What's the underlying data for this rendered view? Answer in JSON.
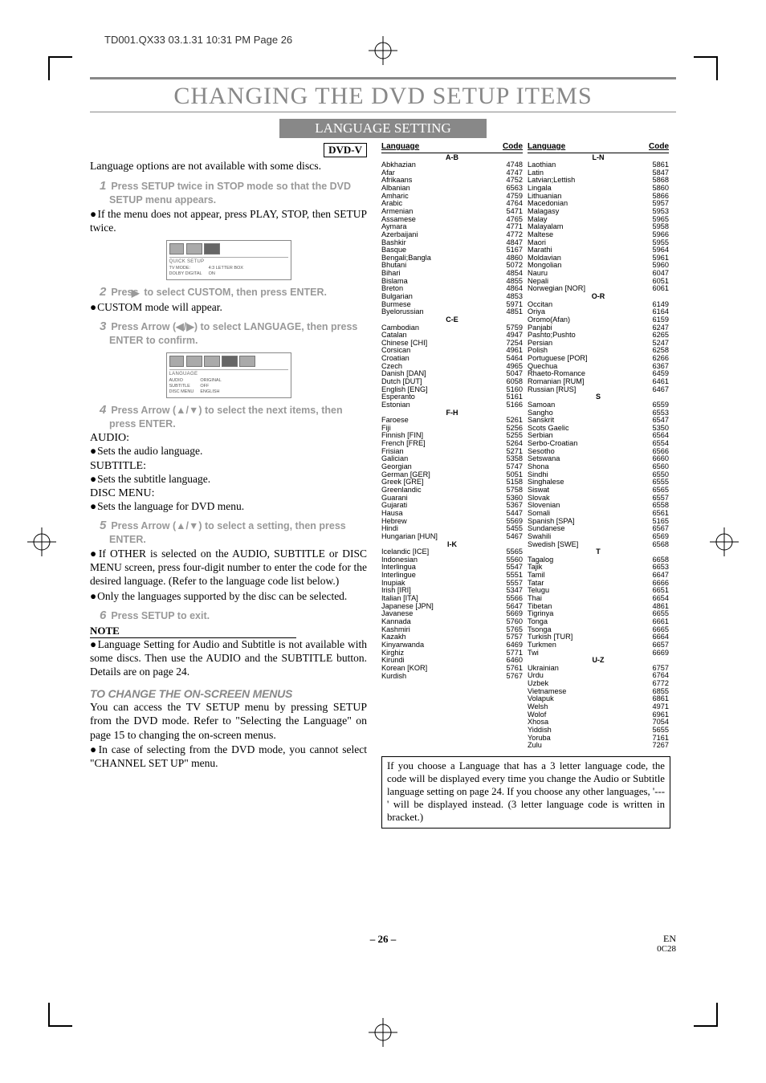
{
  "header_info": "TD001.QX33  03.1.31 10:31 PM  Page 26",
  "title": "CHANGING THE DVD SETUP ITEMS",
  "subtitle": "LANGUAGE SETTING",
  "dvdv": "DVD-V",
  "intro": "Language options are not available with some discs.",
  "step1": "Press SETUP twice in STOP mode so that the DVD SETUP menu appears.",
  "bullet1": "If the menu does not appear, press PLAY, STOP, then SETUP twice.",
  "step2_pre": "Press ",
  "step2_post": " to select CUSTOM, then press ENTER.",
  "bullet2": "CUSTOM mode will appear.",
  "step3": "Press Arrow (◀/▶) to select LANGUAGE, then press ENTER to confirm.",
  "step4": "Press Arrow (▲/▼) to select the next items, then press ENTER.",
  "audio_hdr": "AUDIO:",
  "audio_txt": "Sets the audio language.",
  "subtitle_hdr": "SUBTITLE:",
  "subtitle_txt": "Sets the subtitle language.",
  "disc_hdr": "DISC MENU:",
  "disc_txt": "Sets the language for DVD menu.",
  "step5": "Press Arrow (▲/▼) to select a setting, then press ENTER.",
  "bullet5a": "If OTHER is selected on the AUDIO, SUBTITLE or DISC MENU screen, press four-digit number to enter the code for the desired language. (Refer to the language code list below.)",
  "bullet5b": "Only the languages supported by the disc can be selected.",
  "step6": "Press SETUP to exit.",
  "note_hdr": "NOTE",
  "note_txt": "Language Setting for Audio and Subtitle is not available with some discs. Then use the AUDIO and the SUBTITLE button. Details are on page 24.",
  "change_hdr": "TO CHANGE THE ON-SCREEN MENUS",
  "change_txt": "You can access the TV SETUP menu by pressing SETUP from the DVD mode. Refer to \"Selecting the Language\" on page 15 to changing the on-screen menus.",
  "change_bullet": "In case of selecting from the DVD mode, you cannot select \"CHANNEL SET UP\" menu.",
  "osd1": {
    "label": "QUICK SETUP",
    "r1a": "TV MODE:",
    "r1b": "4:3 LETTER BOX",
    "r2a": "DOLBY DIGITAL",
    "r2b": "ON"
  },
  "osd2": {
    "label": "LANGUAGE",
    "c1": "AUDIO\nSUBTITLE\nDISC MENU",
    "c2": "ORIGINAL\nOFF\nENGLISH"
  },
  "lang_header_lang": "Language",
  "lang_header_code": "Code",
  "groups_left": [
    {
      "g": "A-B",
      "items": [
        [
          "Abkhazian",
          "4748"
        ],
        [
          "Afar",
          "4747"
        ],
        [
          "Afrikaans",
          "4752"
        ],
        [
          "Albanian",
          "6563"
        ],
        [
          "Amharic",
          "4759"
        ],
        [
          "Arabic",
          "4764"
        ],
        [
          "Armenian",
          "5471"
        ],
        [
          "Assamese",
          "4765"
        ],
        [
          "Aymara",
          "4771"
        ],
        [
          "Azerbaijani",
          "4772"
        ],
        [
          "Bashkir",
          "4847"
        ],
        [
          "Basque",
          "5167"
        ],
        [
          "Bengali;Bangla",
          "4860"
        ],
        [
          "Bhutani",
          "5072"
        ],
        [
          "Bihari",
          "4854"
        ],
        [
          "Bislama",
          "4855"
        ],
        [
          "Breton",
          "4864"
        ],
        [
          "Bulgarian",
          "4853"
        ],
        [
          "Burmese",
          "5971"
        ],
        [
          "Byelorussian",
          "4851"
        ]
      ]
    },
    {
      "g": "C-E",
      "items": [
        [
          "Cambodian",
          "5759"
        ],
        [
          "Catalan",
          "4947"
        ],
        [
          "Chinese [CHI]",
          "7254"
        ],
        [
          "Corsican",
          "4961"
        ],
        [
          "Croatian",
          "5464"
        ],
        [
          "Czech",
          "4965"
        ],
        [
          "Danish [DAN]",
          "5047"
        ],
        [
          "Dutch [DUT]",
          "6058"
        ],
        [
          "English [ENG]",
          "5160"
        ],
        [
          "Esperanto",
          "5161"
        ],
        [
          "Estonian",
          "5166"
        ]
      ]
    },
    {
      "g": "F-H",
      "items": [
        [
          "Faroese",
          "5261"
        ],
        [
          "Fiji",
          "5256"
        ],
        [
          "Finnish [FIN]",
          "5255"
        ],
        [
          "French [FRE]",
          "5264"
        ],
        [
          "Frisian",
          "5271"
        ],
        [
          "Galician",
          "5358"
        ],
        [
          "Georgian",
          "5747"
        ],
        [
          "German [GER]",
          "5051"
        ],
        [
          "Greek [GRE]",
          "5158"
        ],
        [
          "Greenlandic",
          "5758"
        ],
        [
          "Guarani",
          "5360"
        ],
        [
          "Gujarati",
          "5367"
        ],
        [
          "Hausa",
          "5447"
        ],
        [
          "Hebrew",
          "5569"
        ],
        [
          "Hindi",
          "5455"
        ],
        [
          "Hungarian [HUN]",
          "5467"
        ]
      ]
    },
    {
      "g": "I-K",
      "items": [
        [
          "Icelandic [ICE]",
          "5565"
        ],
        [
          "Indonesian",
          "5560"
        ],
        [
          "Interlingua",
          "5547"
        ],
        [
          "Interlingue",
          "5551"
        ],
        [
          "Inupiak",
          "5557"
        ],
        [
          "Irish [IRI]",
          "5347"
        ],
        [
          "Italian [ITA]",
          "5566"
        ],
        [
          "Japanese [JPN]",
          "5647"
        ],
        [
          "Javanese",
          "5669"
        ],
        [
          "Kannada",
          "5760"
        ],
        [
          "Kashmiri",
          "5765"
        ],
        [
          "Kazakh",
          "5757"
        ],
        [
          "Kinyarwanda",
          "6469"
        ],
        [
          "Kirghiz",
          "5771"
        ],
        [
          "Kirundi",
          "6460"
        ],
        [
          "Korean [KOR]",
          "5761"
        ],
        [
          "Kurdish",
          "5767"
        ]
      ]
    }
  ],
  "groups_right": [
    {
      "g": "L-N",
      "items": [
        [
          "Laothian",
          "5861"
        ],
        [
          "Latin",
          "5847"
        ],
        [
          "Latvian;Lettish",
          "5868"
        ],
        [
          "Lingala",
          "5860"
        ],
        [
          "Lithuanian",
          "5866"
        ],
        [
          "Macedonian",
          "5957"
        ],
        [
          "Malagasy",
          "5953"
        ],
        [
          "Malay",
          "5965"
        ],
        [
          "Malayalam",
          "5958"
        ],
        [
          "Maltese",
          "5966"
        ],
        [
          "Maori",
          "5955"
        ],
        [
          "Marathi",
          "5964"
        ],
        [
          "Moldavian",
          "5961"
        ],
        [
          "Mongolian",
          "5960"
        ],
        [
          "Nauru",
          "6047"
        ],
        [
          "Nepali",
          "6051"
        ],
        [
          "Norwegian [NOR]",
          "6061"
        ]
      ]
    },
    {
      "g": "O-R",
      "items": [
        [
          "Occitan",
          "6149"
        ],
        [
          "Oriya",
          "6164"
        ],
        [
          "Oromo(Afan)",
          "6159"
        ],
        [
          "Panjabi",
          "6247"
        ],
        [
          "Pashto;Pushto",
          "6265"
        ],
        [
          "Persian",
          "5247"
        ],
        [
          "Polish",
          "6258"
        ],
        [
          "Portuguese [POR]",
          "6266"
        ],
        [
          "Quechua",
          "6367"
        ],
        [
          "Rhaeto-Romance",
          "6459"
        ],
        [
          "Romanian [RUM]",
          "6461"
        ],
        [
          "Russian [RUS]",
          "6467"
        ]
      ]
    },
    {
      "g": "S",
      "items": [
        [
          "Samoan",
          "6559"
        ],
        [
          "Sangho",
          "6553"
        ],
        [
          "Sanskrit",
          "6547"
        ],
        [
          "Scots Gaelic",
          "5350"
        ],
        [
          "Serbian",
          "6564"
        ],
        [
          "Serbo-Croatian",
          "6554"
        ],
        [
          "Sesotho",
          "6566"
        ],
        [
          "Setswana",
          "6660"
        ],
        [
          "Shona",
          "6560"
        ],
        [
          "Sindhi",
          "6550"
        ],
        [
          "Singhalese",
          "6555"
        ],
        [
          "Siswat",
          "6565"
        ],
        [
          "Slovak",
          "6557"
        ],
        [
          "Slovenian",
          "6558"
        ],
        [
          "Somali",
          "6561"
        ],
        [
          "Spanish [SPA]",
          "5165"
        ],
        [
          "Sundanese",
          "6567"
        ],
        [
          "Swahili",
          "6569"
        ],
        [
          "Swedish [SWE]",
          "6568"
        ]
      ]
    },
    {
      "g": "T",
      "items": [
        [
          "Tagalog",
          "6658"
        ],
        [
          "Tajik",
          "6653"
        ],
        [
          "Tamil",
          "6647"
        ],
        [
          "Tatar",
          "6666"
        ],
        [
          "Telugu",
          "6651"
        ],
        [
          "Thai",
          "6654"
        ],
        [
          "Tibetan",
          "4861"
        ],
        [
          "Tigrinya",
          "6655"
        ],
        [
          "Tonga",
          "6661"
        ],
        [
          "Tsonga",
          "6665"
        ],
        [
          "Turkish [TUR]",
          "6664"
        ],
        [
          "Turkmen",
          "6657"
        ],
        [
          "Twi",
          "6669"
        ]
      ]
    },
    {
      "g": "U-Z",
      "items": [
        [
          "Ukrainian",
          "6757"
        ],
        [
          "Urdu",
          "6764"
        ],
        [
          "Uzbek",
          "6772"
        ],
        [
          "Vietnamese",
          "6855"
        ],
        [
          "Volapuk",
          "6861"
        ],
        [
          "Welsh",
          "4971"
        ],
        [
          "Wolof",
          "6961"
        ],
        [
          "Xhosa",
          "7054"
        ],
        [
          "Yiddish",
          "5655"
        ],
        [
          "Yoruba",
          "7161"
        ],
        [
          "Zulu",
          "7267"
        ]
      ]
    }
  ],
  "footnote": "If you choose a Language that has a 3 letter language code, the code will be displayed every time you change the Audio or Subtitle language setting on page 24. If you choose any other languages, '---' will be displayed instead. (3 letter language code is written in bracket.)",
  "pageno": "– 26 –",
  "en": "EN",
  "code": "0C28"
}
